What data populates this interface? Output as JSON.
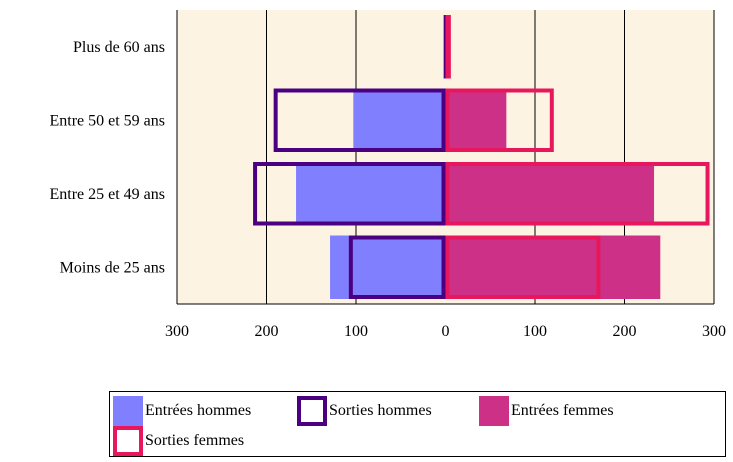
{
  "chart_data": {
    "type": "bar",
    "orientation": "horizontal-butterfly",
    "categories": [
      "Plus de 60 ans",
      "Entre 50 et 59 ans",
      "Entre 25 et 49 ans",
      "Moins de 25 ans"
    ],
    "series": [
      {
        "name": "Entrées hommes",
        "side": "left",
        "style": "filled",
        "color": "#8080ff",
        "values": [
          2,
          103,
          167,
          129
        ]
      },
      {
        "name": "Sorties hommes",
        "side": "left",
        "style": "outline",
        "color": "#4b0082",
        "values": [
          2,
          192,
          215,
          108
        ]
      },
      {
        "name": "Entrées femmes",
        "side": "right",
        "style": "filled",
        "color": "#cc3087",
        "values": [
          2,
          68,
          233,
          240
        ]
      },
      {
        "name": "Sorties femmes",
        "side": "right",
        "style": "outline",
        "color": "#e8175d",
        "values": [
          6,
          121,
          295,
          173
        ]
      }
    ],
    "xlim": [
      -300,
      300
    ],
    "xticks": [
      "300",
      "200",
      "100",
      "0",
      "100",
      "200",
      "300"
    ],
    "grid": true,
    "background": "#fdf3e3",
    "legend_position": "bottom"
  }
}
